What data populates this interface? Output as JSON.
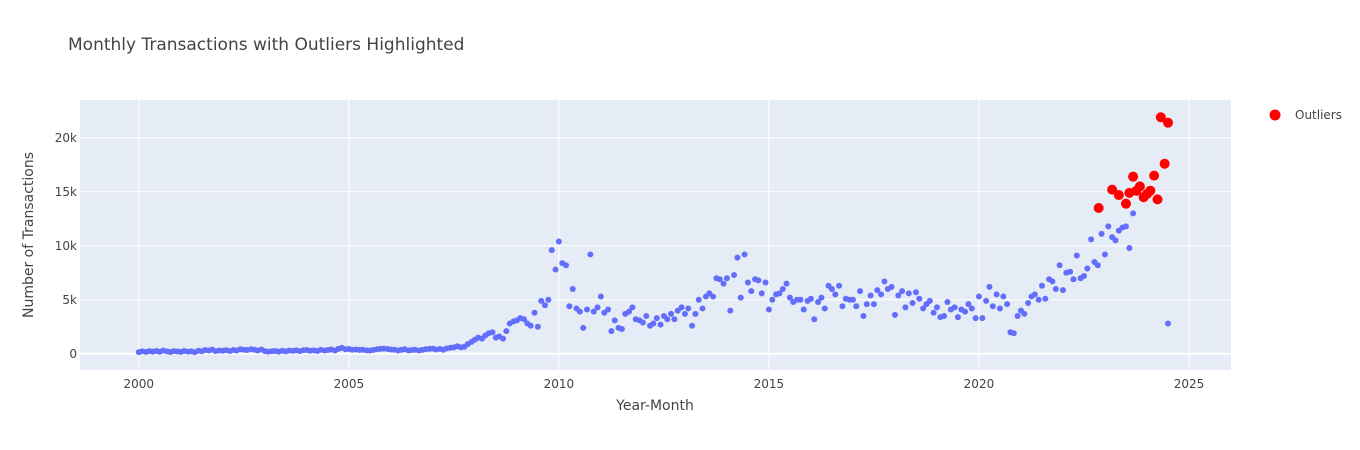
{
  "chart_data": {
    "type": "scatter",
    "title": "Monthly Transactions with Outliers Highlighted",
    "xlabel": "Year-Month",
    "ylabel": "Number of Transactions",
    "xlim": [
      1998.6,
      2026.0
    ],
    "ylim": [
      -1500,
      23500
    ],
    "x_ticks": [
      2000,
      2005,
      2010,
      2015,
      2020,
      2025
    ],
    "y_ticks": [
      0,
      5000,
      10000,
      15000,
      20000
    ],
    "y_tick_labels": [
      "0",
      "5k",
      "10k",
      "15k",
      "20k"
    ],
    "grid": true,
    "legend_position": "top-right",
    "colors": {
      "plot_bg": "#E5ECF6",
      "grid": "#FFFFFF",
      "normal": "#636EFA",
      "outlier": "#FF0000"
    },
    "series": [
      {
        "marker_size": 6,
        "points": [
          [
            2000.0,
            150
          ],
          [
            2000.08,
            230
          ],
          [
            2000.17,
            180
          ],
          [
            2000.25,
            250
          ],
          [
            2000.33,
            200
          ],
          [
            2000.42,
            260
          ],
          [
            2000.5,
            190
          ],
          [
            2000.58,
            300
          ],
          [
            2000.67,
            220
          ],
          [
            2000.75,
            170
          ],
          [
            2000.83,
            250
          ],
          [
            2000.92,
            210
          ],
          [
            2001.0,
            180
          ],
          [
            2001.08,
            260
          ],
          [
            2001.17,
            200
          ],
          [
            2001.25,
            230
          ],
          [
            2001.33,
            160
          ],
          [
            2001.42,
            280
          ],
          [
            2001.5,
            240
          ],
          [
            2001.58,
            350
          ],
          [
            2001.67,
            300
          ],
          [
            2001.75,
            390
          ],
          [
            2001.83,
            250
          ],
          [
            2001.92,
            300
          ],
          [
            2002.0,
            280
          ],
          [
            2002.08,
            340
          ],
          [
            2002.17,
            260
          ],
          [
            2002.25,
            350
          ],
          [
            2002.33,
            300
          ],
          [
            2002.42,
            420
          ],
          [
            2002.5,
            380
          ],
          [
            2002.58,
            350
          ],
          [
            2002.67,
            420
          ],
          [
            2002.75,
            380
          ],
          [
            2002.83,
            300
          ],
          [
            2002.92,
            400
          ],
          [
            2003.0,
            250
          ],
          [
            2003.08,
            200
          ],
          [
            2003.17,
            240
          ],
          [
            2003.25,
            260
          ],
          [
            2003.33,
            200
          ],
          [
            2003.42,
            280
          ],
          [
            2003.5,
            220
          ],
          [
            2003.58,
            300
          ],
          [
            2003.67,
            270
          ],
          [
            2003.75,
            320
          ],
          [
            2003.83,
            250
          ],
          [
            2003.92,
            330
          ],
          [
            2004.0,
            350
          ],
          [
            2004.08,
            280
          ],
          [
            2004.17,
            320
          ],
          [
            2004.25,
            260
          ],
          [
            2004.33,
            380
          ],
          [
            2004.42,
            300
          ],
          [
            2004.5,
            350
          ],
          [
            2004.58,
            400
          ],
          [
            2004.67,
            300
          ],
          [
            2004.75,
            460
          ],
          [
            2004.83,
            550
          ],
          [
            2004.92,
            420
          ],
          [
            2005.0,
            450
          ],
          [
            2005.08,
            380
          ],
          [
            2005.17,
            400
          ],
          [
            2005.25,
            360
          ],
          [
            2005.33,
            380
          ],
          [
            2005.42,
            320
          ],
          [
            2005.5,
            300
          ],
          [
            2005.58,
            350
          ],
          [
            2005.67,
            420
          ],
          [
            2005.75,
            460
          ],
          [
            2005.83,
            480
          ],
          [
            2005.92,
            440
          ],
          [
            2006.0,
            400
          ],
          [
            2006.08,
            380
          ],
          [
            2006.17,
            300
          ],
          [
            2006.25,
            360
          ],
          [
            2006.33,
            420
          ],
          [
            2006.42,
            300
          ],
          [
            2006.5,
            350
          ],
          [
            2006.58,
            380
          ],
          [
            2006.67,
            300
          ],
          [
            2006.75,
            360
          ],
          [
            2006.83,
            420
          ],
          [
            2006.92,
            460
          ],
          [
            2007.0,
            480
          ],
          [
            2007.08,
            400
          ],
          [
            2007.17,
            450
          ],
          [
            2007.25,
            380
          ],
          [
            2007.33,
            500
          ],
          [
            2007.42,
            560
          ],
          [
            2007.5,
            600
          ],
          [
            2007.58,
            700
          ],
          [
            2007.67,
            600
          ],
          [
            2007.75,
            650
          ],
          [
            2007.83,
            900
          ],
          [
            2007.92,
            1100
          ],
          [
            2008.0,
            1300
          ],
          [
            2008.08,
            1500
          ],
          [
            2008.17,
            1400
          ],
          [
            2008.25,
            1700
          ],
          [
            2008.33,
            1900
          ],
          [
            2008.42,
            2000
          ],
          [
            2008.5,
            1500
          ],
          [
            2008.58,
            1600
          ],
          [
            2008.67,
            1400
          ],
          [
            2008.75,
            2100
          ],
          [
            2008.83,
            2800
          ],
          [
            2008.92,
            3000
          ],
          [
            2009.0,
            3100
          ],
          [
            2009.08,
            3300
          ],
          [
            2009.17,
            3200
          ],
          [
            2009.25,
            2800
          ],
          [
            2009.33,
            2600
          ],
          [
            2009.42,
            3800
          ],
          [
            2009.5,
            2500
          ],
          [
            2009.58,
            4900
          ],
          [
            2009.67,
            4500
          ],
          [
            2009.75,
            5000
          ],
          [
            2009.83,
            9600
          ],
          [
            2009.92,
            7800
          ],
          [
            2010.0,
            10400
          ],
          [
            2010.08,
            8400
          ],
          [
            2010.17,
            8200
          ],
          [
            2010.25,
            4400
          ],
          [
            2010.33,
            6000
          ],
          [
            2010.42,
            4200
          ],
          [
            2010.5,
            3900
          ],
          [
            2010.58,
            2400
          ],
          [
            2010.67,
            4100
          ],
          [
            2010.75,
            9200
          ],
          [
            2010.83,
            3900
          ],
          [
            2010.92,
            4300
          ],
          [
            2011.0,
            5300
          ],
          [
            2011.08,
            3800
          ],
          [
            2011.17,
            4100
          ],
          [
            2011.25,
            2100
          ],
          [
            2011.33,
            3100
          ],
          [
            2011.42,
            2400
          ],
          [
            2011.5,
            2300
          ],
          [
            2011.58,
            3700
          ],
          [
            2011.67,
            3900
          ],
          [
            2011.75,
            4300
          ],
          [
            2011.83,
            3200
          ],
          [
            2011.92,
            3100
          ],
          [
            2012.0,
            2900
          ],
          [
            2012.08,
            3500
          ],
          [
            2012.17,
            2600
          ],
          [
            2012.25,
            2800
          ],
          [
            2012.33,
            3300
          ],
          [
            2012.42,
            2700
          ],
          [
            2012.5,
            3500
          ],
          [
            2012.58,
            3200
          ],
          [
            2012.67,
            3700
          ],
          [
            2012.75,
            3200
          ],
          [
            2012.83,
            4000
          ],
          [
            2012.92,
            4300
          ],
          [
            2013.0,
            3700
          ],
          [
            2013.08,
            4200
          ],
          [
            2013.17,
            2600
          ],
          [
            2013.25,
            3700
          ],
          [
            2013.33,
            5000
          ],
          [
            2013.42,
            4200
          ],
          [
            2013.5,
            5300
          ],
          [
            2013.58,
            5600
          ],
          [
            2013.67,
            5300
          ],
          [
            2013.75,
            7000
          ],
          [
            2013.83,
            6900
          ],
          [
            2013.92,
            6500
          ],
          [
            2014.0,
            7000
          ],
          [
            2014.08,
            4000
          ],
          [
            2014.17,
            7300
          ],
          [
            2014.25,
            8900
          ],
          [
            2014.33,
            5200
          ],
          [
            2014.42,
            9200
          ],
          [
            2014.5,
            6600
          ],
          [
            2014.58,
            5800
          ],
          [
            2014.67,
            6900
          ],
          [
            2014.75,
            6800
          ],
          [
            2014.83,
            5600
          ],
          [
            2014.92,
            6600
          ],
          [
            2015.0,
            4100
          ],
          [
            2015.08,
            5000
          ],
          [
            2015.17,
            5500
          ],
          [
            2015.25,
            5600
          ],
          [
            2015.33,
            6000
          ],
          [
            2015.42,
            6500
          ],
          [
            2015.5,
            5200
          ],
          [
            2015.58,
            4800
          ],
          [
            2015.67,
            5000
          ],
          [
            2015.75,
            5000
          ],
          [
            2015.83,
            4100
          ],
          [
            2015.92,
            4900
          ],
          [
            2016.0,
            5100
          ],
          [
            2016.08,
            3200
          ],
          [
            2016.17,
            4800
          ],
          [
            2016.25,
            5200
          ],
          [
            2016.33,
            4200
          ],
          [
            2016.42,
            6300
          ],
          [
            2016.5,
            6000
          ],
          [
            2016.58,
            5500
          ],
          [
            2016.67,
            6300
          ],
          [
            2016.75,
            4400
          ],
          [
            2016.83,
            5100
          ],
          [
            2016.92,
            5000
          ],
          [
            2017.0,
            5000
          ],
          [
            2017.08,
            4400
          ],
          [
            2017.17,
            5800
          ],
          [
            2017.25,
            3500
          ],
          [
            2017.33,
            4600
          ],
          [
            2017.42,
            5400
          ],
          [
            2017.5,
            4600
          ],
          [
            2017.58,
            5900
          ],
          [
            2017.67,
            5500
          ],
          [
            2017.75,
            6700
          ],
          [
            2017.83,
            6000
          ],
          [
            2017.92,
            6200
          ],
          [
            2018.0,
            3600
          ],
          [
            2018.08,
            5400
          ],
          [
            2018.17,
            5800
          ],
          [
            2018.25,
            4300
          ],
          [
            2018.33,
            5600
          ],
          [
            2018.42,
            4700
          ],
          [
            2018.5,
            5700
          ],
          [
            2018.58,
            5100
          ],
          [
            2018.67,
            4200
          ],
          [
            2018.75,
            4600
          ],
          [
            2018.83,
            4900
          ],
          [
            2018.92,
            3800
          ],
          [
            2019.0,
            4300
          ],
          [
            2019.08,
            3400
          ],
          [
            2019.17,
            3500
          ],
          [
            2019.25,
            4800
          ],
          [
            2019.33,
            4100
          ],
          [
            2019.42,
            4300
          ],
          [
            2019.5,
            3400
          ],
          [
            2019.58,
            4100
          ],
          [
            2019.67,
            3900
          ],
          [
            2019.75,
            4600
          ],
          [
            2019.83,
            4200
          ],
          [
            2019.92,
            3300
          ],
          [
            2020.0,
            5300
          ],
          [
            2020.08,
            3300
          ],
          [
            2020.17,
            4900
          ],
          [
            2020.25,
            6200
          ],
          [
            2020.33,
            4400
          ],
          [
            2020.42,
            5500
          ],
          [
            2020.5,
            4200
          ],
          [
            2020.58,
            5300
          ],
          [
            2020.67,
            4600
          ],
          [
            2020.75,
            2000
          ],
          [
            2020.83,
            1900
          ],
          [
            2020.92,
            3500
          ],
          [
            2021.0,
            4000
          ],
          [
            2021.08,
            3700
          ],
          [
            2021.17,
            4700
          ],
          [
            2021.25,
            5300
          ],
          [
            2021.33,
            5500
          ],
          [
            2021.42,
            5000
          ],
          [
            2021.5,
            6300
          ],
          [
            2021.58,
            5100
          ],
          [
            2021.67,
            6900
          ],
          [
            2021.75,
            6700
          ],
          [
            2021.83,
            6000
          ],
          [
            2021.92,
            8200
          ],
          [
            2022.0,
            5900
          ],
          [
            2022.08,
            7500
          ],
          [
            2022.17,
            7600
          ],
          [
            2022.25,
            6900
          ],
          [
            2022.33,
            9100
          ],
          [
            2022.42,
            7000
          ],
          [
            2022.5,
            7200
          ],
          [
            2022.58,
            7900
          ],
          [
            2022.67,
            10600
          ],
          [
            2022.75,
            8500
          ],
          [
            2022.83,
            8200
          ],
          [
            2022.92,
            11100
          ],
          [
            2023.0,
            9200
          ],
          [
            2023.08,
            11800
          ],
          [
            2023.17,
            10800
          ],
          [
            2023.25,
            10500
          ],
          [
            2023.33,
            11400
          ],
          [
            2023.42,
            11700
          ],
          [
            2023.5,
            11800
          ],
          [
            2023.58,
            9800
          ],
          [
            2023.67,
            13000
          ],
          [
            2024.5,
            2800
          ]
        ]
      },
      {
        "name": "Outliers",
        "marker_size": 10,
        "points": [
          [
            2022.85,
            13500
          ],
          [
            2023.17,
            15200
          ],
          [
            2023.33,
            14700
          ],
          [
            2023.5,
            13900
          ],
          [
            2023.58,
            14900
          ],
          [
            2023.67,
            16400
          ],
          [
            2023.75,
            15100
          ],
          [
            2023.83,
            15500
          ],
          [
            2023.92,
            14500
          ],
          [
            2024.0,
            14800
          ],
          [
            2024.08,
            15100
          ],
          [
            2024.17,
            16500
          ],
          [
            2024.25,
            14300
          ],
          [
            2024.33,
            21900
          ],
          [
            2024.42,
            17600
          ],
          [
            2024.5,
            21400
          ]
        ]
      }
    ]
  }
}
